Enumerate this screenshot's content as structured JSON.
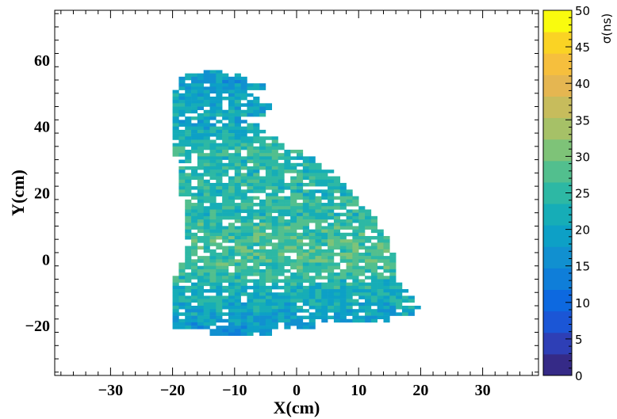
{
  "chart_data": {
    "type": "heatmap",
    "title": "",
    "xlabel": "X(cm)",
    "ylabel": "Y(cm)",
    "xlim": [
      -39,
      39
    ],
    "ylim": [
      -35,
      75
    ],
    "x_ticks": [
      -30,
      -20,
      -10,
      0,
      10,
      20,
      30
    ],
    "x_tick_labels": [
      "−30",
      "−20",
      "−10",
      "0",
      "10",
      "20",
      "30"
    ],
    "y_ticks": [
      -20,
      0,
      20,
      40,
      60
    ],
    "y_tick_labels": [
      "−20",
      "0",
      "20",
      "40",
      "60"
    ],
    "colorbar": {
      "label": "σ(ns)",
      "min": 0,
      "max": 50,
      "ticks": [
        0,
        5,
        10,
        15,
        20,
        25,
        30,
        35,
        40,
        45,
        50
      ],
      "tick_labels": [
        "0",
        "5",
        "10",
        "15",
        "20",
        "25",
        "30",
        "35",
        "40",
        "45",
        "50"
      ],
      "palette": [
        "#352a87",
        "#2e3fb6",
        "#1b56d6",
        "#0d69e0",
        "#0f7ed9",
        "#1190d0",
        "#0da0c6",
        "#16adb7",
        "#2db8a4",
        "#52bf8e",
        "#7ec378",
        "#a6c167",
        "#c7bc5c",
        "#e5b651",
        "#f6bf3d",
        "#fad324",
        "#f9fb0e"
      ]
    },
    "cell_size_cm": [
      1,
      1
    ],
    "region": {
      "description_omitted": true,
      "rows": [
        {
          "y": 56,
          "x_from": -15,
          "x_to": -13,
          "value": 19
        },
        {
          "y": 55,
          "x_from": -18,
          "x_to": -10,
          "value": 19
        },
        {
          "y": 54,
          "x_from": -19,
          "x_to": -9,
          "value": 18
        },
        {
          "y": 52,
          "x_from": -19,
          "x_to": -6,
          "value": 19
        },
        {
          "y": 50,
          "x_from": -20,
          "x_to": -8,
          "value": 20
        },
        {
          "y": 48,
          "x_from": -20,
          "x_to": -7,
          "value": 20
        },
        {
          "y": 46,
          "x_from": -20,
          "x_to": -5,
          "value": 20
        },
        {
          "y": 44,
          "x_from": -20,
          "x_to": -6,
          "value": 21
        },
        {
          "y": 42,
          "x_from": -20,
          "x_to": -9,
          "value": 20
        },
        {
          "y": 40,
          "x_from": -20,
          "x_to": -7,
          "value": 21
        },
        {
          "y": 38,
          "x_from": -20,
          "x_to": -6,
          "value": 22
        },
        {
          "y": 36,
          "x_from": -20,
          "x_to": -4,
          "value": 23
        },
        {
          "y": 34,
          "x_from": -20,
          "x_to": -3,
          "value": 24
        },
        {
          "y": 32,
          "x_from": -20,
          "x_to": 0,
          "value": 25
        },
        {
          "y": 30,
          "x_from": -19,
          "x_to": 2,
          "value": 24
        },
        {
          "y": 28,
          "x_from": -19,
          "x_to": 3,
          "value": 25
        },
        {
          "y": 26,
          "x_from": -19,
          "x_to": 5,
          "value": 24
        },
        {
          "y": 24,
          "x_from": -19,
          "x_to": 6,
          "value": 25
        },
        {
          "y": 22,
          "x_from": -19,
          "x_to": 7,
          "value": 24
        },
        {
          "y": 20,
          "x_from": -19,
          "x_to": 8,
          "value": 24
        },
        {
          "y": 18,
          "x_from": -18,
          "x_to": 9,
          "value": 25
        },
        {
          "y": 16,
          "x_from": -18,
          "x_to": 10,
          "value": 25
        },
        {
          "y": 14,
          "x_from": -18,
          "x_to": 11,
          "value": 24
        },
        {
          "y": 12,
          "x_from": -18,
          "x_to": 12,
          "value": 25
        },
        {
          "y": 10,
          "x_from": -18,
          "x_to": 12,
          "value": 26
        },
        {
          "y": 8,
          "x_from": -18,
          "x_to": 13,
          "value": 26
        },
        {
          "y": 6,
          "x_from": -18,
          "x_to": 14,
          "value": 27
        },
        {
          "y": 4,
          "x_from": -18,
          "x_to": 14,
          "value": 27
        },
        {
          "y": 2,
          "x_from": -18,
          "x_to": 15,
          "value": 27
        },
        {
          "y": 0,
          "x_from": -18,
          "x_to": 15,
          "value": 27
        },
        {
          "y": -2,
          "x_from": -19,
          "x_to": 15,
          "value": 26
        },
        {
          "y": -4,
          "x_from": -19,
          "x_to": 15,
          "value": 25
        },
        {
          "y": -6,
          "x_from": -20,
          "x_to": 15,
          "value": 24
        },
        {
          "y": -8,
          "x_from": -20,
          "x_to": 16,
          "value": 23
        },
        {
          "y": -10,
          "x_from": -20,
          "x_to": 17,
          "value": 22
        },
        {
          "y": -12,
          "x_from": -20,
          "x_to": 18,
          "value": 22
        },
        {
          "y": -14,
          "x_from": -20,
          "x_to": 19,
          "value": 21
        },
        {
          "y": -16,
          "x_from": -20,
          "x_to": 18,
          "value": 20
        },
        {
          "y": -18,
          "x_from": -20,
          "x_to": 14,
          "value": 19
        },
        {
          "y": -20,
          "x_from": -20,
          "x_to": 2,
          "value": 18
        },
        {
          "y": -22,
          "x_from": -14,
          "x_to": -5,
          "value": 18
        }
      ]
    },
    "grid": false,
    "legend": "none"
  }
}
